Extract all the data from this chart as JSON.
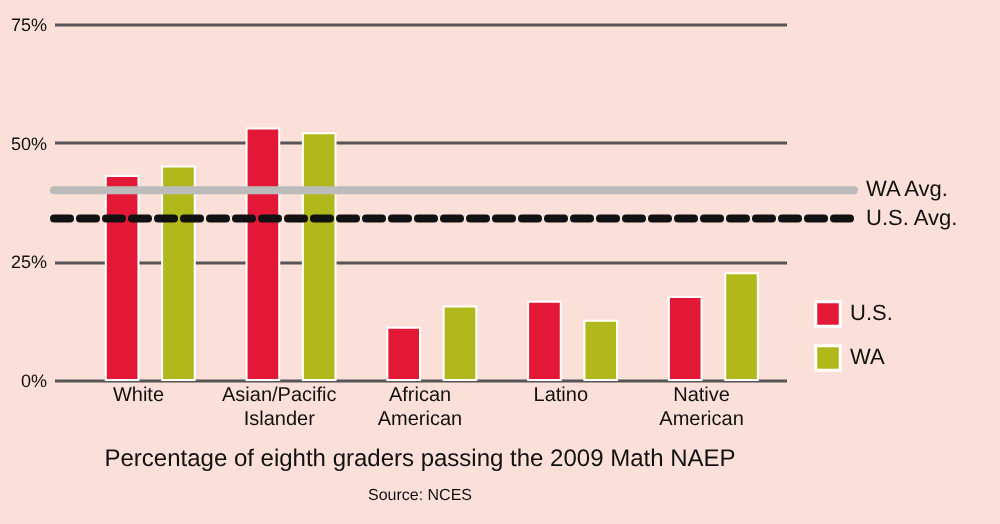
{
  "chart_data": {
    "type": "bar",
    "title": "Percentage of eighth graders passing the 2009 Math NAEP",
    "annotations": [
      "Source: NCES"
    ],
    "categories": [
      "White",
      "Asian/Pacific Islander",
      "African American",
      "Latino",
      "Native American"
    ],
    "series": [
      {
        "name": "U.S.",
        "color": "#e31837",
        "values": [
          43,
          53,
          11,
          16.5,
          17.5
        ]
      },
      {
        "name": "WA",
        "color": "#b0b81c",
        "values": [
          45,
          52,
          15.5,
          12.5,
          22.5
        ]
      }
    ],
    "ylim": [
      0,
      75
    ],
    "yticks": [
      {
        "value": 0,
        "label": "0%"
      },
      {
        "value": 25,
        "label": "25%"
      },
      {
        "value": 50,
        "label": "50%"
      },
      {
        "value": 75,
        "label": "75%"
      }
    ],
    "grid": "y",
    "legend": "right",
    "ref_lines": [
      {
        "axis": "y",
        "value": 40,
        "label": "WA Avg.",
        "color": "#bbbbbb",
        "line_style": "solid"
      },
      {
        "axis": "y",
        "value": 34,
        "label": "U.S. Avg.",
        "color": "#111111",
        "line_style": "dashed"
      }
    ]
  }
}
